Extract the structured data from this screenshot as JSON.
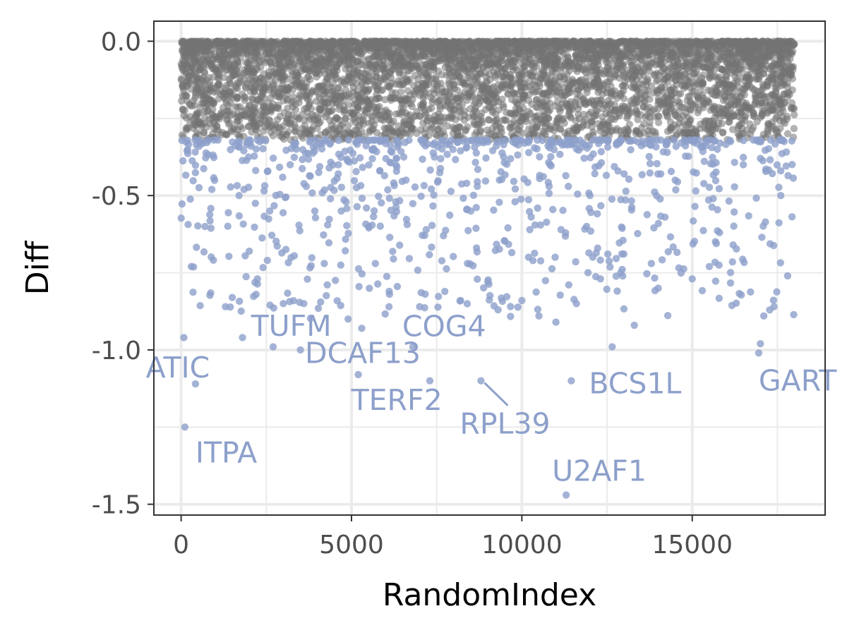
{
  "chart_data": {
    "type": "scatter",
    "xlabel": "RandomIndex",
    "ylabel": "Diff",
    "xlim": [
      -800,
      18900
    ],
    "ylim": [
      -1.535,
      0.065
    ],
    "x_ticks": [
      0,
      5000,
      10000,
      15000
    ],
    "x_tick_labels": [
      "0",
      "5000",
      "10000",
      "15000"
    ],
    "y_ticks": [
      0.0,
      -0.5,
      -1.0,
      -1.5
    ],
    "y_tick_labels": [
      "0.0",
      "-0.5",
      "-1.0",
      "-1.5"
    ],
    "grid": true,
    "legend": "none",
    "colors": {
      "background_points": "#737373",
      "hit_points": "#8da0cb",
      "label_text": "#8da0cb",
      "grid": "#ebebeb",
      "panel_border": "#333333"
    },
    "series": [
      {
        "group": "above-threshold",
        "threshold": -0.32,
        "x_range": [
          0,
          18000
        ],
        "y_range": [
          -0.32,
          0.0
        ],
        "approx_point_count": 16000,
        "density": "dense near 0, thinning toward -0.32"
      },
      {
        "group": "below-threshold",
        "points": [
          [
            80,
            -0.96
          ],
          [
            420,
            -1.11
          ],
          [
            110,
            -1.25
          ],
          [
            1500,
            -0.83
          ],
          [
            1800,
            -0.96
          ],
          [
            2700,
            -0.99
          ],
          [
            3500,
            -1.0
          ],
          [
            5200,
            -1.08
          ],
          [
            6800,
            -0.99
          ],
          [
            7300,
            -1.1
          ],
          [
            8800,
            -1.1
          ],
          [
            11300,
            -1.47
          ],
          [
            11450,
            -1.1
          ],
          [
            12650,
            -0.99
          ],
          [
            16950,
            -1.01
          ],
          [
            17000,
            -0.98
          ],
          [
            17100,
            -0.89
          ],
          [
            300,
            -0.73
          ],
          [
            700,
            -0.6
          ],
          [
            1300,
            -0.86
          ],
          [
            2000,
            -0.68
          ],
          [
            2200,
            -0.82
          ],
          [
            3000,
            -0.85
          ],
          [
            3600,
            -0.85
          ],
          [
            4200,
            -0.72
          ],
          [
            4900,
            -0.9
          ],
          [
            5300,
            -0.93
          ],
          [
            5700,
            -0.72
          ],
          [
            6100,
            -0.86
          ],
          [
            7000,
            -0.86
          ],
          [
            8200,
            -0.84
          ],
          [
            9300,
            -0.87
          ],
          [
            10000,
            -0.84
          ],
          [
            10500,
            -0.89
          ],
          [
            11000,
            -0.91
          ],
          [
            11600,
            -0.85
          ],
          [
            13300,
            -0.92
          ],
          [
            14000,
            -0.8
          ],
          [
            15000,
            -0.77
          ],
          [
            17400,
            -0.86
          ],
          [
            17800,
            -0.76
          ],
          [
            900,
            -0.48
          ],
          [
            2600,
            -0.55
          ],
          [
            5500,
            -0.6
          ],
          [
            8500,
            -0.55
          ],
          [
            12000,
            -0.5
          ],
          [
            14500,
            -0.45
          ],
          [
            15800,
            -0.62
          ],
          [
            16500,
            -0.4
          ],
          [
            17600,
            -0.5
          ],
          [
            3200,
            -0.4
          ],
          [
            6600,
            -0.45
          ],
          [
            9800,
            -0.52
          ],
          [
            11900,
            -0.6
          ],
          [
            13800,
            -0.72
          ],
          [
            16200,
            -0.66
          ],
          [
            4700,
            -0.55
          ],
          [
            7700,
            -0.63
          ],
          [
            10800,
            -0.47
          ],
          [
            12900,
            -0.75
          ],
          [
            1700,
            -0.5
          ],
          [
            9000,
            -0.78
          ],
          [
            15500,
            -0.73
          ],
          [
            6300,
            -0.52
          ],
          [
            14200,
            -0.57
          ]
        ]
      }
    ],
    "annotations": [
      {
        "text": "ATIC",
        "x": 420,
        "y": -1.11
      },
      {
        "text": "ITPA",
        "x": 110,
        "y": -1.25
      },
      {
        "text": "DCAF13",
        "x": 2700,
        "y": -0.99
      },
      {
        "text": "TUFM",
        "x": 3500,
        "y": -1.0
      },
      {
        "text": "TERF2",
        "x": 5200,
        "y": -1.08
      },
      {
        "text": "COG4",
        "x": 6800,
        "y": -0.99
      },
      {
        "text": "RPL39",
        "x": 8800,
        "y": -1.1
      },
      {
        "text": "U2AF1",
        "x": 11300,
        "y": -1.47
      },
      {
        "text": "BCS1L",
        "x": 11450,
        "y": -1.1
      },
      {
        "text": "GART",
        "x": 16950,
        "y": -1.01
      }
    ]
  }
}
